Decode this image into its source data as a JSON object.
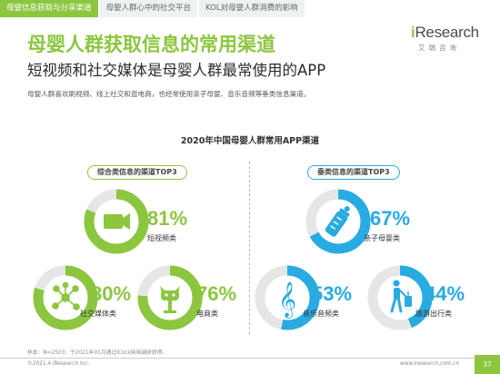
{
  "tabs": [
    {
      "label": "母婴信息获取与分享渠道",
      "active": true
    },
    {
      "label": "母婴人群心中的社交平台",
      "active": false
    },
    {
      "label": "KOL对母婴人群消费的影响",
      "active": false
    }
  ],
  "logo": {
    "main_i": "i",
    "main_rest": "Research",
    "sub": "艾瑞咨询"
  },
  "header": {
    "title": "母婴人群获取信息的常用渠道",
    "subtitle": "短视频和社交媒体是母婴人群最常使用的APP",
    "description": "母婴人群喜欢刷视频、线上社交和逛电商，也经常使用亲子母婴、音乐音频等垂类信息渠道。"
  },
  "chart_data": {
    "type": "ring",
    "title": "2020年中国母婴人群常用APP渠道",
    "groups": [
      {
        "name": "综合类信息的渠道TOP3",
        "color": "#8cc63f",
        "items": [
          {
            "label": "短视频类",
            "value": 81,
            "display": "81%",
            "icon": "video-camera-icon"
          },
          {
            "label": "社交媒体类",
            "value": 80,
            "display": "80%",
            "icon": "social-network-icon"
          },
          {
            "label": "电商类",
            "value": 76,
            "display": "76%",
            "icon": "shopping-mascot-icon"
          }
        ]
      },
      {
        "name": "垂类信息的渠道TOP3",
        "color": "#29abe2",
        "items": [
          {
            "label": "亲子母婴类",
            "value": 67,
            "display": "67%",
            "icon": "baby-bottle-icon"
          },
          {
            "label": "音乐音频类",
            "value": 53,
            "display": "53%",
            "icon": "music-note-icon"
          },
          {
            "label": "旅游出行类",
            "value": 44,
            "display": "44%",
            "icon": "traveler-icon"
          }
        ]
      }
    ]
  },
  "footnote": "样本：N=2503；于2021年01月通过iClick网络调研获得。",
  "footer": {
    "copyright": "©2021.4 iResearch Inc.",
    "site": "www.iresearch.com.cn",
    "page": "37"
  },
  "colors": {
    "green": "#8cc63f",
    "blue": "#29abe2",
    "track": "#e6e6e6"
  }
}
